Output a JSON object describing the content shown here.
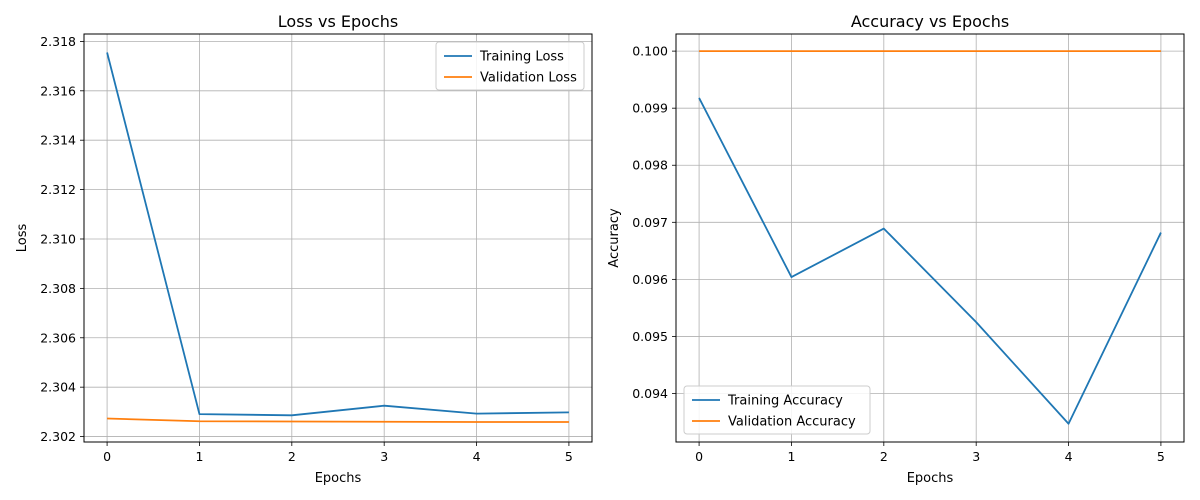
{
  "chart_data": [
    {
      "type": "line",
      "title": "Loss vs Epochs",
      "xlabel": "Epochs",
      "ylabel": "Loss",
      "x": [
        0,
        1,
        2,
        3,
        4,
        5
      ],
      "xticks": [
        "0",
        "1",
        "2",
        "3",
        "4",
        "5"
      ],
      "xlim": [
        -0.25,
        5.25
      ],
      "yticks": [
        "2.302",
        "2.304",
        "2.306",
        "2.308",
        "2.310",
        "2.312",
        "2.314",
        "2.316",
        "2.318"
      ],
      "ylim": [
        2.30178,
        2.3183
      ],
      "grid": true,
      "legend_position": "top-right",
      "series": [
        {
          "name": "Training Loss",
          "color": "#1f77b4",
          "values": [
            2.31755,
            2.30291,
            2.30286,
            2.30325,
            2.30293,
            2.30298
          ]
        },
        {
          "name": "Validation Loss",
          "color": "#ff7f0e",
          "values": [
            2.30273,
            2.30262,
            2.30261,
            2.3026,
            2.30259,
            2.30259
          ]
        }
      ]
    },
    {
      "type": "line",
      "title": "Accuracy vs Epochs",
      "xlabel": "Epochs",
      "ylabel": "Accuracy",
      "x": [
        0,
        1,
        2,
        3,
        4,
        5
      ],
      "xticks": [
        "0",
        "1",
        "2",
        "3",
        "4",
        "5"
      ],
      "xlim": [
        -0.25,
        5.25
      ],
      "yticks": [
        "0.094",
        "0.095",
        "0.096",
        "0.097",
        "0.098",
        "0.099",
        "0.100"
      ],
      "ylim": [
        0.09315,
        0.1003
      ],
      "grid": true,
      "legend_position": "bottom-left",
      "series": [
        {
          "name": "Training Accuracy",
          "color": "#1f77b4",
          "values": [
            0.09918,
            0.09604,
            0.09689,
            0.09525,
            0.09347,
            0.09682
          ]
        },
        {
          "name": "Validation Accuracy",
          "color": "#ff7f0e",
          "values": [
            0.1,
            0.1,
            0.1,
            0.1,
            0.1,
            0.1
          ]
        }
      ]
    }
  ]
}
